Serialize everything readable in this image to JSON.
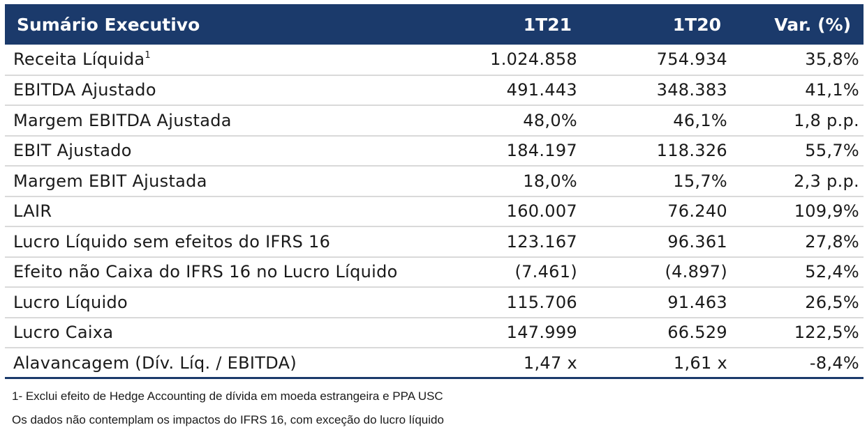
{
  "header": {
    "title": "Sumário Executivo",
    "col1": "1T21",
    "col2": "1T20",
    "col3": "Var. (%)"
  },
  "rows": [
    {
      "label": "Receita Líquida",
      "sup": "1",
      "v1": "1.024.858",
      "v2": "754.934",
      "v3": "35,8%"
    },
    {
      "label": "EBITDA Ajustado",
      "sup": "",
      "v1": "491.443",
      "v2": "348.383",
      "v3": "41,1%"
    },
    {
      "label": "Margem EBITDA Ajustada",
      "sup": "",
      "v1": "48,0%",
      "v2": "46,1%",
      "v3": "1,8 p.p."
    },
    {
      "label": "EBIT Ajustado",
      "sup": "",
      "v1": "184.197",
      "v2": "118.326",
      "v3": "55,7%"
    },
    {
      "label": "Margem EBIT Ajustada",
      "sup": "",
      "v1": "18,0%",
      "v2": "15,7%",
      "v3": "2,3 p.p."
    },
    {
      "label": "LAIR",
      "sup": "",
      "v1": "160.007",
      "v2": "76.240",
      "v3": "109,9%"
    },
    {
      "label": "Lucro Líquido sem efeitos do IFRS 16",
      "sup": "",
      "v1": "123.167",
      "v2": "96.361",
      "v3": "27,8%"
    },
    {
      "label": "Efeito não Caixa do IFRS 16 no Lucro Líquido",
      "sup": "",
      "v1": "(7.461)",
      "v2": "(4.897)",
      "v3": "52,4%"
    },
    {
      "label": "Lucro Líquido",
      "sup": "",
      "v1": "115.706",
      "v2": "91.463",
      "v3": "26,5%"
    },
    {
      "label": "Lucro Caixa",
      "sup": "",
      "v1": "147.999",
      "v2": "66.529",
      "v3": "122,5%"
    },
    {
      "label": "Alavancagem (Dív. Líq. / EBITDA)",
      "sup": "",
      "v1": "1,47 x",
      "v2": "1,61 x",
      "v3": "-8,4%"
    }
  ],
  "footnotes": [
    "1- Exclui efeito de Hedge Accounting de dívida em moeda estrangeira e PPA USC",
    "Os dados não contemplam os impactos do IFRS 16, com exceção do lucro líquido"
  ],
  "colors": {
    "header_bg": "#1b3a6b",
    "header_text": "#ffffff",
    "row_divider": "#d9d9d9"
  }
}
